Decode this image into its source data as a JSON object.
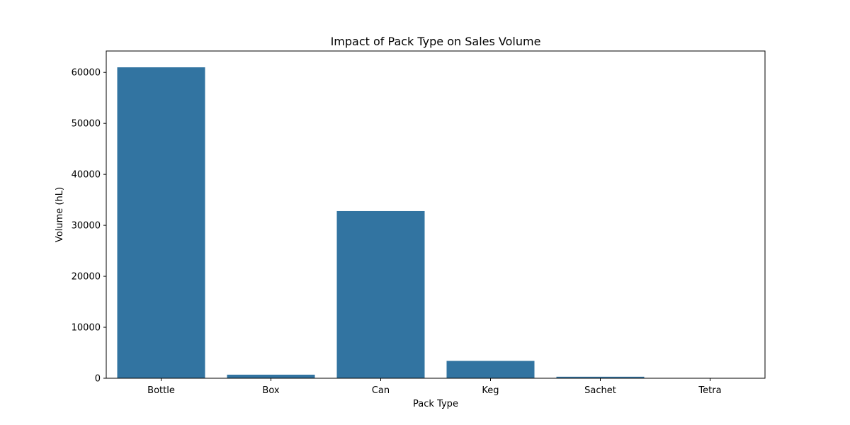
{
  "chart_data": {
    "type": "bar",
    "title": "Impact of Pack Type on Sales Volume",
    "xlabel": "Pack Type",
    "ylabel": "Volume (hL)",
    "categories": [
      "Bottle",
      "Box",
      "Can",
      "Keg",
      "Sachet",
      "Tetra"
    ],
    "values": [
      61000,
      700,
      32800,
      3400,
      300,
      20
    ],
    "ylim": [
      0,
      64200
    ],
    "yticks": [
      0,
      10000,
      20000,
      30000,
      40000,
      50000,
      60000
    ],
    "grid": false,
    "legend": "none",
    "bar_color": "#3274a1"
  }
}
